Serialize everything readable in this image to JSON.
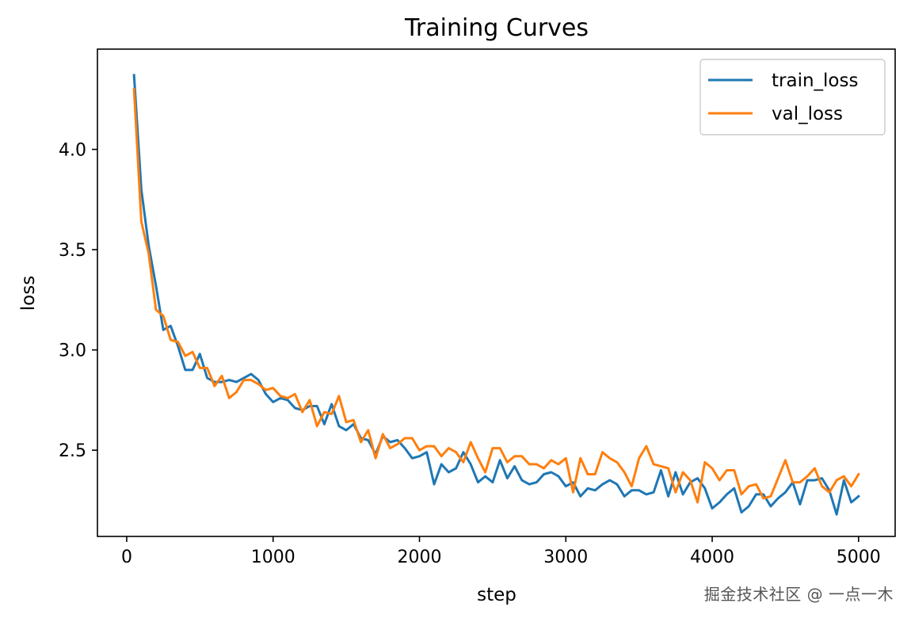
{
  "chart_data": {
    "type": "line",
    "title": "Training Curves",
    "xlabel": "step",
    "ylabel": "loss",
    "xlim": [
      -200,
      5250
    ],
    "ylim": [
      2.07,
      4.5
    ],
    "xticks": [
      0,
      1000,
      2000,
      3000,
      4000,
      5000
    ],
    "yticks": [
      2.5,
      3.0,
      3.5,
      4.0
    ],
    "xtick_labels": [
      "0",
      "1000",
      "2000",
      "3000",
      "4000",
      "5000"
    ],
    "ytick_labels": [
      "2.5",
      "3.0",
      "3.5",
      "4.0"
    ],
    "grid": false,
    "legend_position": "top-right",
    "x": [
      50,
      100,
      150,
      200,
      250,
      300,
      350,
      400,
      450,
      500,
      550,
      600,
      650,
      700,
      750,
      800,
      850,
      900,
      950,
      1000,
      1050,
      1100,
      1150,
      1200,
      1250,
      1300,
      1350,
      1400,
      1450,
      1500,
      1550,
      1600,
      1650,
      1700,
      1750,
      1800,
      1850,
      1900,
      1950,
      2000,
      2050,
      2100,
      2150,
      2200,
      2250,
      2300,
      2350,
      2400,
      2450,
      2500,
      2550,
      2600,
      2650,
      2700,
      2750,
      2800,
      2850,
      2900,
      2950,
      3000,
      3050,
      3100,
      3150,
      3200,
      3250,
      3300,
      3350,
      3400,
      3450,
      3500,
      3550,
      3600,
      3650,
      3700,
      3750,
      3800,
      3850,
      3900,
      3950,
      4000,
      4050,
      4100,
      4150,
      4200,
      4250,
      4300,
      4350,
      4400,
      4450,
      4500,
      4550,
      4600,
      4650,
      4700,
      4750,
      4800,
      4850,
      4900,
      4950,
      5000
    ],
    "series": [
      {
        "name": "train_loss",
        "color": "#1f77b4",
        "values": [
          4.37,
          3.8,
          3.52,
          3.32,
          3.1,
          3.12,
          3.02,
          2.9,
          2.9,
          2.98,
          2.86,
          2.84,
          2.84,
          2.85,
          2.84,
          2.86,
          2.88,
          2.85,
          2.78,
          2.74,
          2.76,
          2.75,
          2.71,
          2.7,
          2.72,
          2.72,
          2.63,
          2.73,
          2.62,
          2.6,
          2.63,
          2.56,
          2.55,
          2.48,
          2.57,
          2.54,
          2.55,
          2.51,
          2.46,
          2.47,
          2.49,
          2.33,
          2.43,
          2.39,
          2.41,
          2.49,
          2.43,
          2.34,
          2.37,
          2.34,
          2.45,
          2.36,
          2.42,
          2.35,
          2.33,
          2.34,
          2.38,
          2.39,
          2.37,
          2.32,
          2.34,
          2.27,
          2.31,
          2.3,
          2.33,
          2.35,
          2.33,
          2.27,
          2.3,
          2.3,
          2.28,
          2.29,
          2.4,
          2.27,
          2.39,
          2.28,
          2.34,
          2.36,
          2.31,
          2.21,
          2.24,
          2.28,
          2.31,
          2.19,
          2.22,
          2.28,
          2.28,
          2.22,
          2.26,
          2.29,
          2.34,
          2.23,
          2.35,
          2.35,
          2.36,
          2.3,
          2.18,
          2.35,
          2.24,
          2.27
        ]
      },
      {
        "name": "val_loss",
        "color": "#ff7f0e",
        "values": [
          4.3,
          3.64,
          3.48,
          3.2,
          3.17,
          3.05,
          3.04,
          2.97,
          2.99,
          2.91,
          2.91,
          2.82,
          2.87,
          2.76,
          2.79,
          2.85,
          2.85,
          2.83,
          2.8,
          2.81,
          2.77,
          2.76,
          2.78,
          2.69,
          2.75,
          2.62,
          2.69,
          2.68,
          2.77,
          2.64,
          2.65,
          2.54,
          2.6,
          2.46,
          2.58,
          2.51,
          2.53,
          2.56,
          2.56,
          2.5,
          2.52,
          2.52,
          2.47,
          2.51,
          2.49,
          2.44,
          2.54,
          2.46,
          2.39,
          2.51,
          2.51,
          2.44,
          2.47,
          2.47,
          2.43,
          2.43,
          2.41,
          2.45,
          2.43,
          2.46,
          2.29,
          2.46,
          2.38,
          2.38,
          2.49,
          2.46,
          2.44,
          2.39,
          2.32,
          2.46,
          2.52,
          2.43,
          2.42,
          2.41,
          2.29,
          2.39,
          2.35,
          2.24,
          2.44,
          2.41,
          2.35,
          2.4,
          2.4,
          2.28,
          2.32,
          2.33,
          2.26,
          2.27,
          2.36,
          2.45,
          2.34,
          2.34,
          2.37,
          2.41,
          2.32,
          2.29,
          2.35,
          2.37,
          2.32,
          2.38
        ]
      }
    ]
  },
  "watermark": "掘金技术社区 @ 一点一木"
}
